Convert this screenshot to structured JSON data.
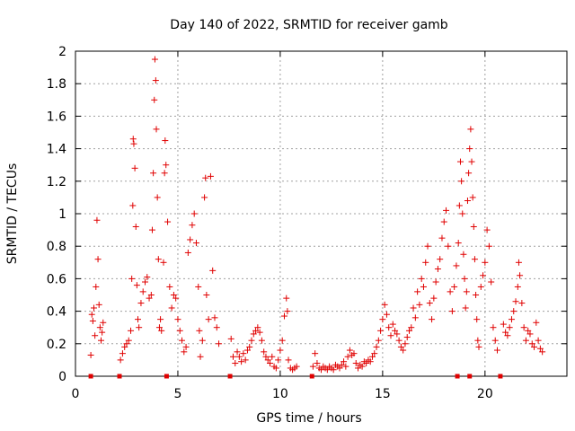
{
  "chart_data": {
    "type": "scatter",
    "title": "Day 140 of 2022, SRMTID for receiver gamb",
    "xlabel": "GPS time / hours",
    "ylabel": "SRMTID / TECUs",
    "xlim": [
      0,
      24
    ],
    "ylim": [
      0,
      2
    ],
    "xticks": [
      "0",
      "5",
      "10",
      "15",
      "20"
    ],
    "yticks": [
      "0",
      "0.2",
      "0.4",
      "0.6",
      "0.8",
      "1",
      "1.2",
      "1.4",
      "1.6",
      "1.8",
      "2"
    ],
    "grid": true,
    "marker": "+",
    "color": "#e00000",
    "series": [
      {
        "name": "SRMTID",
        "points": [
          [
            0.75,
            0.13
          ],
          [
            0.8,
            0.38
          ],
          [
            0.85,
            0.34
          ],
          [
            0.9,
            0.42
          ],
          [
            0.95,
            0.25
          ],
          [
            1.0,
            0.55
          ],
          [
            1.05,
            0.96
          ],
          [
            1.1,
            0.72
          ],
          [
            1.15,
            0.44
          ],
          [
            1.2,
            0.3
          ],
          [
            1.25,
            0.22
          ],
          [
            1.3,
            0.27
          ],
          [
            1.35,
            0.33
          ],
          [
            2.2,
            0.1
          ],
          [
            2.3,
            0.14
          ],
          [
            2.4,
            0.18
          ],
          [
            2.5,
            0.2
          ],
          [
            2.6,
            0.22
          ],
          [
            2.7,
            0.28
          ],
          [
            2.75,
            0.6
          ],
          [
            2.8,
            1.05
          ],
          [
            2.82,
            1.46
          ],
          [
            2.85,
            1.43
          ],
          [
            2.9,
            1.28
          ],
          [
            2.95,
            0.92
          ],
          [
            3.0,
            0.56
          ],
          [
            3.05,
            0.35
          ],
          [
            3.1,
            0.3
          ],
          [
            3.2,
            0.45
          ],
          [
            3.3,
            0.52
          ],
          [
            3.4,
            0.58
          ],
          [
            3.5,
            0.61
          ],
          [
            3.6,
            0.48
          ],
          [
            3.7,
            0.5
          ],
          [
            3.75,
            0.9
          ],
          [
            3.8,
            1.25
          ],
          [
            3.85,
            1.7
          ],
          [
            3.88,
            1.95
          ],
          [
            3.92,
            1.82
          ],
          [
            3.95,
            1.52
          ],
          [
            4.0,
            1.1
          ],
          [
            4.05,
            0.72
          ],
          [
            4.1,
            0.3
          ],
          [
            4.15,
            0.35
          ],
          [
            4.2,
            0.28
          ],
          [
            4.3,
            0.7
          ],
          [
            4.35,
            1.25
          ],
          [
            4.38,
            1.45
          ],
          [
            4.42,
            1.3
          ],
          [
            4.5,
            0.95
          ],
          [
            4.6,
            0.55
          ],
          [
            4.7,
            0.42
          ],
          [
            4.8,
            0.5
          ],
          [
            4.9,
            0.48
          ],
          [
            5.0,
            0.35
          ],
          [
            5.1,
            0.28
          ],
          [
            5.2,
            0.22
          ],
          [
            5.3,
            0.15
          ],
          [
            5.4,
            0.18
          ],
          [
            5.5,
            0.76
          ],
          [
            5.6,
            0.84
          ],
          [
            5.7,
            0.93
          ],
          [
            5.8,
            1.0
          ],
          [
            5.9,
            0.82
          ],
          [
            6.0,
            0.55
          ],
          [
            6.05,
            0.28
          ],
          [
            6.1,
            0.12
          ],
          [
            6.2,
            0.22
          ],
          [
            6.3,
            1.1
          ],
          [
            6.35,
            1.22
          ],
          [
            6.4,
            0.5
          ],
          [
            6.5,
            0.35
          ],
          [
            6.6,
            1.23
          ],
          [
            6.7,
            0.65
          ],
          [
            6.8,
            0.36
          ],
          [
            6.9,
            0.3
          ],
          [
            7.0,
            0.2
          ],
          [
            7.6,
            0.23
          ],
          [
            7.7,
            0.12
          ],
          [
            7.8,
            0.08
          ],
          [
            7.9,
            0.15
          ],
          [
            8.0,
            0.12
          ],
          [
            8.1,
            0.09
          ],
          [
            8.2,
            0.14
          ],
          [
            8.3,
            0.1
          ],
          [
            8.4,
            0.16
          ],
          [
            8.5,
            0.18
          ],
          [
            8.6,
            0.22
          ],
          [
            8.7,
            0.26
          ],
          [
            8.8,
            0.28
          ],
          [
            8.9,
            0.3
          ],
          [
            9.0,
            0.27
          ],
          [
            9.1,
            0.22
          ],
          [
            9.2,
            0.15
          ],
          [
            9.3,
            0.12
          ],
          [
            9.4,
            0.1
          ],
          [
            9.5,
            0.08
          ],
          [
            9.6,
            0.12
          ],
          [
            9.7,
            0.06
          ],
          [
            9.8,
            0.05
          ],
          [
            9.9,
            0.1
          ],
          [
            10.0,
            0.16
          ],
          [
            10.1,
            0.22
          ],
          [
            10.2,
            0.37
          ],
          [
            10.3,
            0.48
          ],
          [
            10.35,
            0.4
          ],
          [
            10.4,
            0.1
          ],
          [
            10.5,
            0.05
          ],
          [
            10.6,
            0.04
          ],
          [
            10.7,
            0.05
          ],
          [
            10.8,
            0.06
          ],
          [
            11.6,
            0.06
          ],
          [
            11.7,
            0.14
          ],
          [
            11.8,
            0.08
          ],
          [
            11.9,
            0.05
          ],
          [
            12.0,
            0.04
          ],
          [
            12.1,
            0.06
          ],
          [
            12.2,
            0.05
          ],
          [
            12.3,
            0.04
          ],
          [
            12.4,
            0.06
          ],
          [
            12.5,
            0.05
          ],
          [
            12.6,
            0.04
          ],
          [
            12.7,
            0.07
          ],
          [
            12.8,
            0.06
          ],
          [
            12.9,
            0.05
          ],
          [
            13.0,
            0.07
          ],
          [
            13.1,
            0.09
          ],
          [
            13.2,
            0.06
          ],
          [
            13.3,
            0.12
          ],
          [
            13.4,
            0.16
          ],
          [
            13.5,
            0.13
          ],
          [
            13.6,
            0.14
          ],
          [
            13.7,
            0.08
          ],
          [
            13.8,
            0.05
          ],
          [
            13.9,
            0.07
          ],
          [
            14.0,
            0.06
          ],
          [
            14.1,
            0.09
          ],
          [
            14.2,
            0.08
          ],
          [
            14.3,
            0.1
          ],
          [
            14.4,
            0.09
          ],
          [
            14.5,
            0.12
          ],
          [
            14.6,
            0.14
          ],
          [
            14.7,
            0.18
          ],
          [
            14.8,
            0.22
          ],
          [
            14.9,
            0.28
          ],
          [
            15.0,
            0.35
          ],
          [
            15.1,
            0.44
          ],
          [
            15.2,
            0.38
          ],
          [
            15.3,
            0.3
          ],
          [
            15.4,
            0.25
          ],
          [
            15.5,
            0.32
          ],
          [
            15.6,
            0.28
          ],
          [
            15.7,
            0.26
          ],
          [
            15.8,
            0.22
          ],
          [
            15.9,
            0.18
          ],
          [
            16.0,
            0.16
          ],
          [
            16.1,
            0.2
          ],
          [
            16.2,
            0.24
          ],
          [
            16.3,
            0.28
          ],
          [
            16.4,
            0.3
          ],
          [
            16.5,
            0.42
          ],
          [
            16.6,
            0.36
          ],
          [
            16.7,
            0.52
          ],
          [
            16.8,
            0.44
          ],
          [
            16.9,
            0.6
          ],
          [
            17.0,
            0.55
          ],
          [
            17.1,
            0.7
          ],
          [
            17.2,
            0.8
          ],
          [
            17.3,
            0.45
          ],
          [
            17.4,
            0.35
          ],
          [
            17.5,
            0.48
          ],
          [
            17.6,
            0.58
          ],
          [
            17.7,
            0.66
          ],
          [
            17.8,
            0.72
          ],
          [
            17.9,
            0.85
          ],
          [
            18.0,
            0.95
          ],
          [
            18.1,
            1.02
          ],
          [
            18.2,
            0.8
          ],
          [
            18.3,
            0.52
          ],
          [
            18.4,
            0.4
          ],
          [
            18.5,
            0.55
          ],
          [
            18.6,
            0.68
          ],
          [
            18.7,
            0.82
          ],
          [
            18.75,
            1.05
          ],
          [
            18.8,
            1.32
          ],
          [
            18.85,
            1.2
          ],
          [
            18.9,
            1.0
          ],
          [
            18.95,
            0.75
          ],
          [
            19.0,
            0.6
          ],
          [
            19.05,
            0.42
          ],
          [
            19.1,
            0.52
          ],
          [
            19.15,
            1.08
          ],
          [
            19.2,
            1.25
          ],
          [
            19.25,
            1.4
          ],
          [
            19.3,
            1.52
          ],
          [
            19.35,
            1.32
          ],
          [
            19.4,
            1.1
          ],
          [
            19.45,
            0.92
          ],
          [
            19.5,
            0.72
          ],
          [
            19.55,
            0.5
          ],
          [
            19.6,
            0.35
          ],
          [
            19.65,
            0.22
          ],
          [
            19.7,
            0.18
          ],
          [
            19.8,
            0.55
          ],
          [
            19.9,
            0.62
          ],
          [
            20.0,
            0.7
          ],
          [
            20.1,
            0.9
          ],
          [
            20.2,
            0.8
          ],
          [
            20.3,
            0.58
          ],
          [
            20.4,
            0.3
          ],
          [
            20.5,
            0.22
          ],
          [
            20.6,
            0.16
          ],
          [
            20.9,
            0.32
          ],
          [
            21.0,
            0.27
          ],
          [
            21.1,
            0.25
          ],
          [
            21.2,
            0.3
          ],
          [
            21.3,
            0.35
          ],
          [
            21.4,
            0.4
          ],
          [
            21.5,
            0.46
          ],
          [
            21.6,
            0.55
          ],
          [
            21.65,
            0.7
          ],
          [
            21.7,
            0.62
          ],
          [
            21.8,
            0.45
          ],
          [
            21.9,
            0.3
          ],
          [
            22.0,
            0.22
          ],
          [
            22.1,
            0.28
          ],
          [
            22.2,
            0.26
          ],
          [
            22.3,
            0.2
          ],
          [
            22.4,
            0.18
          ],
          [
            22.5,
            0.33
          ],
          [
            22.6,
            0.22
          ],
          [
            22.7,
            0.17
          ],
          [
            22.8,
            0.15
          ]
        ]
      }
    ],
    "gap_markers_x": [
      0.75,
      2.15,
      4.45,
      7.55,
      11.55,
      18.65,
      19.25,
      20.75
    ]
  }
}
